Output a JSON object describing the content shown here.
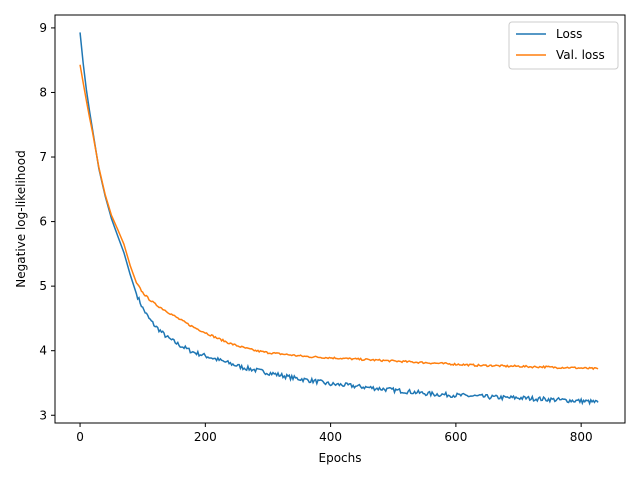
{
  "chart_data": {
    "type": "line",
    "xlabel": "Epochs",
    "ylabel": "Negative log-likelihood",
    "xlim": [
      -40,
      870
    ],
    "ylim": [
      2.88,
      9.2
    ],
    "xticks": [
      0,
      200,
      400,
      600,
      800
    ],
    "yticks": [
      3,
      4,
      5,
      6,
      7,
      8,
      9
    ],
    "legend_position": "top-right",
    "grid": false,
    "series": [
      {
        "name": "Loss",
        "color": "#1f77b4",
        "x": [
          0,
          5,
          10,
          15,
          20,
          30,
          40,
          50,
          60,
          70,
          80,
          90,
          100,
          110,
          120,
          140,
          160,
          180,
          200,
          220,
          240,
          260,
          280,
          300,
          320,
          340,
          360,
          380,
          400,
          420,
          440,
          460,
          480,
          500,
          520,
          540,
          560,
          580,
          600,
          620,
          640,
          660,
          680,
          700,
          720,
          740,
          760,
          780,
          800,
          827
        ],
        "y": [
          8.93,
          8.45,
          8.05,
          7.72,
          7.42,
          6.82,
          6.4,
          6.05,
          5.78,
          5.52,
          5.18,
          4.88,
          4.66,
          4.5,
          4.38,
          4.2,
          4.08,
          3.98,
          3.92,
          3.86,
          3.8,
          3.74,
          3.7,
          3.66,
          3.62,
          3.58,
          3.55,
          3.52,
          3.48,
          3.47,
          3.45,
          3.43,
          3.41,
          3.39,
          3.37,
          3.35,
          3.33,
          3.32,
          3.31,
          3.3,
          3.29,
          3.28,
          3.27,
          3.27,
          3.26,
          3.25,
          3.24,
          3.23,
          3.22,
          3.2
        ]
      },
      {
        "name": "Val. loss",
        "color": "#ff7f0e",
        "x": [
          0,
          5,
          10,
          15,
          20,
          30,
          40,
          50,
          60,
          70,
          80,
          90,
          100,
          110,
          120,
          140,
          160,
          180,
          200,
          220,
          240,
          260,
          280,
          300,
          320,
          340,
          360,
          380,
          400,
          420,
          440,
          460,
          480,
          500,
          520,
          540,
          560,
          580,
          600,
          620,
          640,
          660,
          680,
          700,
          720,
          740,
          760,
          780,
          800,
          827
        ],
        "y": [
          8.43,
          8.15,
          7.88,
          7.62,
          7.38,
          6.84,
          6.42,
          6.1,
          5.88,
          5.65,
          5.32,
          5.05,
          4.9,
          4.8,
          4.72,
          4.6,
          4.48,
          4.37,
          4.28,
          4.19,
          4.11,
          4.05,
          4.0,
          3.97,
          3.95,
          3.93,
          3.91,
          3.9,
          3.89,
          3.88,
          3.87,
          3.86,
          3.85,
          3.84,
          3.83,
          3.82,
          3.81,
          3.8,
          3.79,
          3.78,
          3.77,
          3.77,
          3.76,
          3.76,
          3.75,
          3.75,
          3.74,
          3.74,
          3.73,
          3.72
        ]
      }
    ]
  }
}
